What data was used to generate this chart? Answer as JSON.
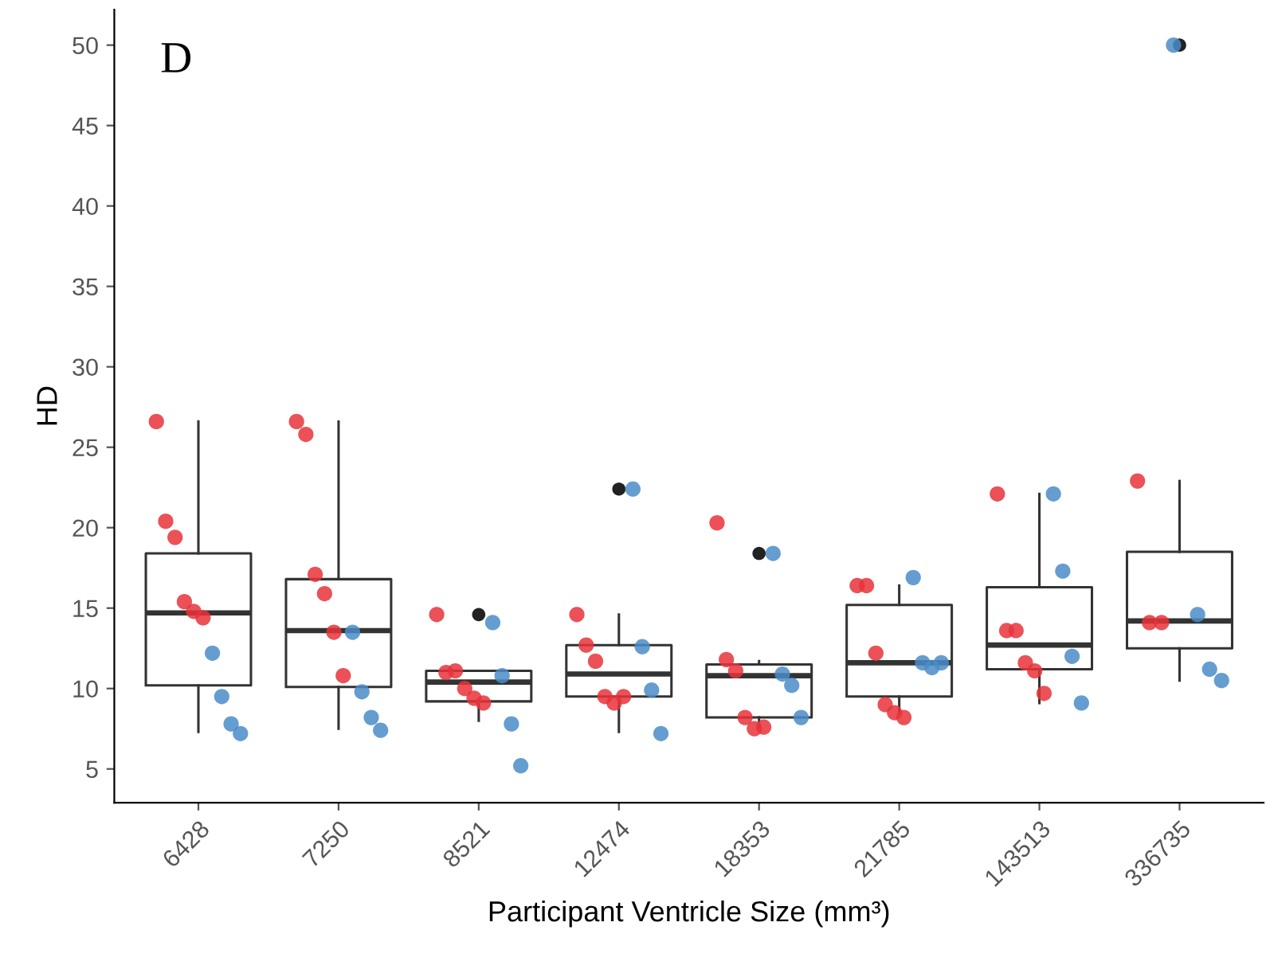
{
  "chart_data": {
    "type": "box",
    "xlabel": "Participant Ventricle Size (mm³)",
    "ylabel": "HD",
    "annotations": [
      "D"
    ],
    "categories": [
      "6428",
      "7250",
      "8521",
      "12474",
      "18353",
      "21785",
      "143513",
      "336735"
    ],
    "ylim": [
      2.9,
      52.2
    ],
    "yticks": [
      5,
      10,
      15,
      20,
      25,
      30,
      35,
      40,
      45,
      50
    ],
    "grid": false,
    "legend": false,
    "boxes": [
      {
        "low": 7.3,
        "q1": 10.2,
        "median": 14.7,
        "q3": 18.4,
        "high": 26.6
      },
      {
        "low": 7.5,
        "q1": 10.1,
        "median": 13.6,
        "q3": 16.8,
        "high": 26.6
      },
      {
        "low": 8.0,
        "q1": 9.2,
        "median": 10.4,
        "q3": 11.1,
        "high": 11.1,
        "outliers": [
          14.6
        ]
      },
      {
        "low": 7.3,
        "q1": 9.5,
        "median": 10.9,
        "q3": 12.7,
        "high": 14.6,
        "outliers": [
          22.4
        ]
      },
      {
        "low": 7.6,
        "q1": 8.2,
        "median": 10.8,
        "q3": 11.5,
        "high": 11.7,
        "outliers": [
          18.4
        ]
      },
      {
        "low": 8.5,
        "q1": 9.5,
        "median": 11.6,
        "q3": 15.2,
        "high": 16.4
      },
      {
        "low": 9.1,
        "q1": 11.2,
        "median": 12.7,
        "q3": 16.3,
        "high": 22.1
      },
      {
        "low": 10.5,
        "q1": 12.5,
        "median": 14.2,
        "q3": 18.5,
        "high": 22.9,
        "outliers": [
          50.0
        ]
      }
    ],
    "series": [
      {
        "type": "scatter",
        "color": "#e8323a",
        "marker": "circle",
        "values": [
          26.6,
          26.6,
          14.6,
          14.6,
          20.3,
          16.4,
          22.1,
          22.9
        ]
      },
      {
        "type": "scatter",
        "color": "#e8323a",
        "marker": "circle",
        "values": [
          20.4,
          25.8,
          11.0,
          12.7,
          11.8,
          16.4,
          13.6,
          14.1
        ]
      },
      {
        "type": "scatter",
        "color": "#e8323a",
        "marker": "circle",
        "values": [
          19.4,
          17.1,
          11.1,
          11.7,
          11.1,
          12.2,
          13.6,
          14.1
        ]
      },
      {
        "type": "scatter",
        "color": "#e8323a",
        "marker": "circle",
        "values": [
          15.4,
          15.9,
          10.0,
          9.5,
          8.2,
          9.0,
          11.6,
          null
        ]
      },
      {
        "type": "scatter",
        "color": "#e8323a",
        "marker": "circle",
        "values": [
          14.8,
          13.5,
          9.4,
          9.1,
          7.5,
          8.5,
          11.1,
          null
        ]
      },
      {
        "type": "scatter",
        "color": "#e8323a",
        "marker": "circle",
        "values": [
          14.4,
          10.8,
          9.1,
          9.5,
          7.6,
          8.2,
          9.7,
          null
        ]
      },
      {
        "type": "scatter",
        "color": "#4a8cc8",
        "marker": "circle",
        "values": [
          12.2,
          13.5,
          14.1,
          22.4,
          18.4,
          16.9,
          22.1,
          50.0
        ]
      },
      {
        "type": "scatter",
        "color": "#4a8cc8",
        "marker": "circle",
        "values": [
          9.5,
          9.8,
          10.8,
          12.6,
          10.9,
          11.6,
          17.3,
          14.6
        ]
      },
      {
        "type": "scatter",
        "color": "#4a8cc8",
        "marker": "circle",
        "values": [
          7.8,
          8.2,
          7.8,
          9.9,
          10.2,
          11.3,
          12.0,
          11.2
        ]
      },
      {
        "type": "scatter",
        "color": "#4a8cc8",
        "marker": "circle",
        "values": [
          7.2,
          7.4,
          5.2,
          7.2,
          8.2,
          11.6,
          9.1,
          10.5
        ]
      }
    ]
  }
}
